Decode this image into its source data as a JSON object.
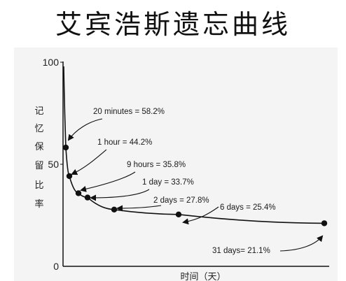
{
  "chart_data": {
    "type": "line",
    "title": "艾宾浩斯遗忘曲线",
    "ylabel": "记忆保留比率",
    "xlabel": "时间（天）",
    "yticks": [
      "100",
      "50",
      "0"
    ],
    "ylim": [
      0,
      100
    ],
    "grid": false,
    "points": [
      {
        "time": "20 minutes",
        "value": 58.2,
        "label": "20 minutes = 58.2%"
      },
      {
        "time": "1 hour",
        "value": 44.2,
        "label": "1 hour = 44.2%"
      },
      {
        "time": "9 hours",
        "value": 35.8,
        "label": "9 hours = 35.8%"
      },
      {
        "time": "1 day",
        "value": 33.7,
        "label": "1 day = 33.7%"
      },
      {
        "time": "2 days",
        "value": 27.8,
        "label": "2 days = 27.8%"
      },
      {
        "time": "6 days",
        "value": 25.4,
        "label": "6 days = 25.4%"
      },
      {
        "time": "31 days",
        "value": 21.1,
        "label": "31 days= 21.1%"
      }
    ]
  }
}
